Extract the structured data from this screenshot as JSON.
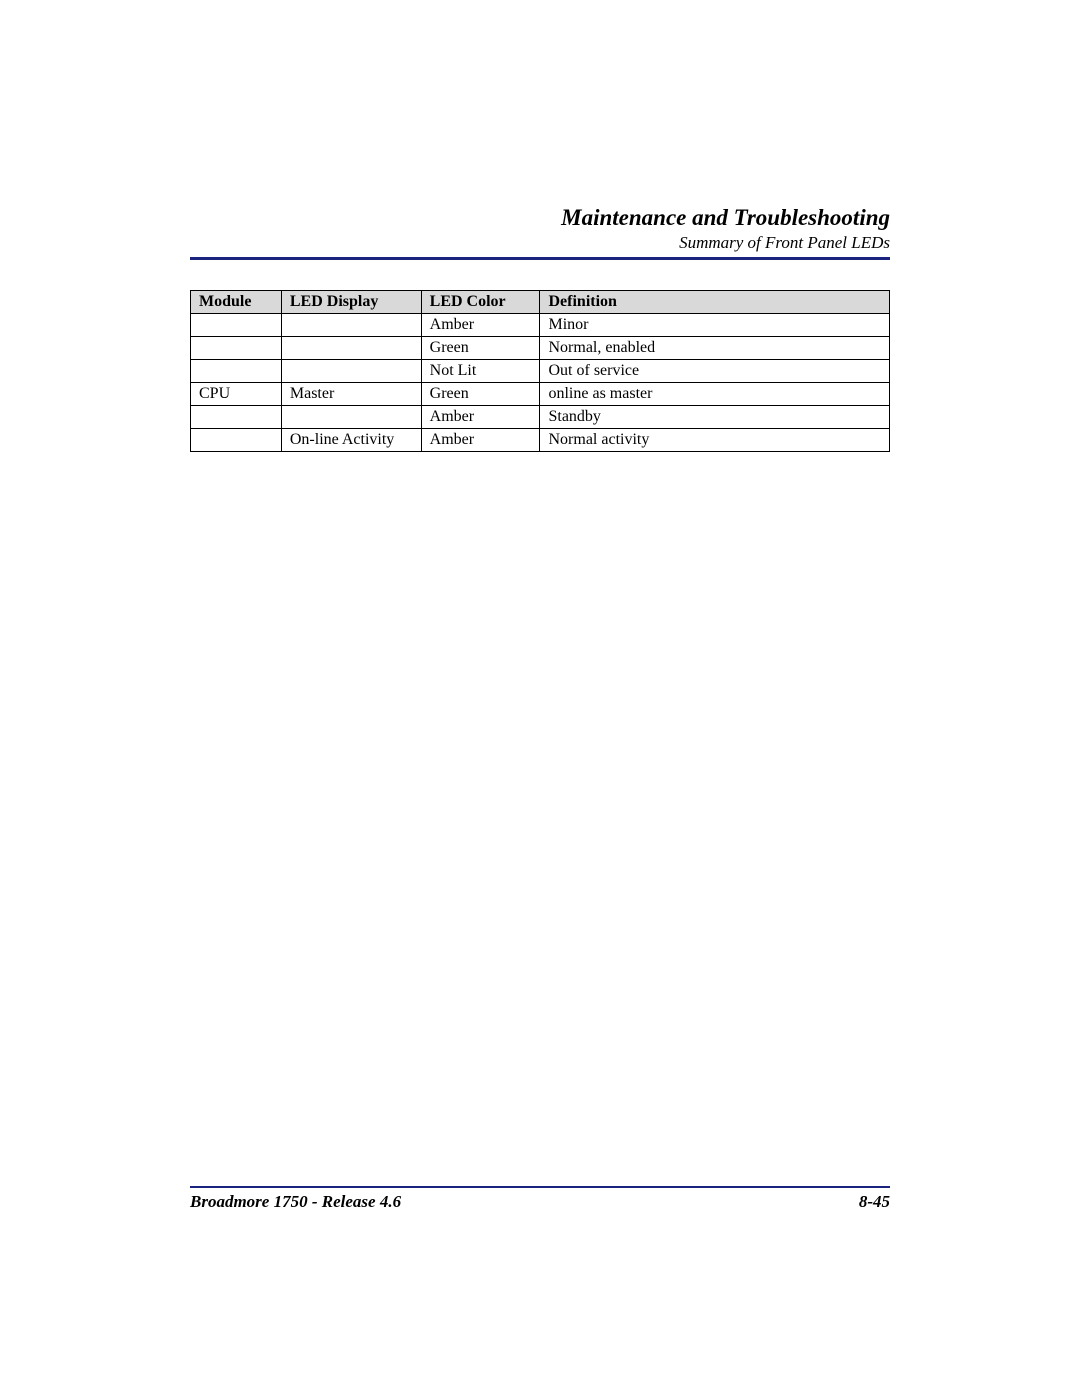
{
  "header": {
    "chapter_title": "Maintenance and Troubleshooting",
    "section_title": "Summary of Front Panel LEDs",
    "rule_color": "#1a237e"
  },
  "table": {
    "type": "table",
    "header_bg": "#d9d9d9",
    "columns": [
      "Module",
      "LED Display",
      "LED Color",
      "Definition"
    ],
    "col_widths_pct": [
      13,
      20,
      17,
      50
    ],
    "rows": [
      [
        "",
        "",
        "Amber",
        "Minor"
      ],
      [
        "",
        "",
        "Green",
        "Normal, enabled"
      ],
      [
        "",
        "",
        "Not Lit",
        "Out of service"
      ],
      [
        "CPU",
        "Master",
        "Green",
        "online as master"
      ],
      [
        "",
        "",
        "Amber",
        "Standby"
      ],
      [
        "",
        "On-line Activity",
        "Amber",
        "Normal activity"
      ]
    ],
    "border_color": "#000000",
    "fontsize": 16
  },
  "footer": {
    "left": "Broadmore 1750 - Release 4.6",
    "right": "8-45",
    "rule_color": "#1a237e"
  }
}
